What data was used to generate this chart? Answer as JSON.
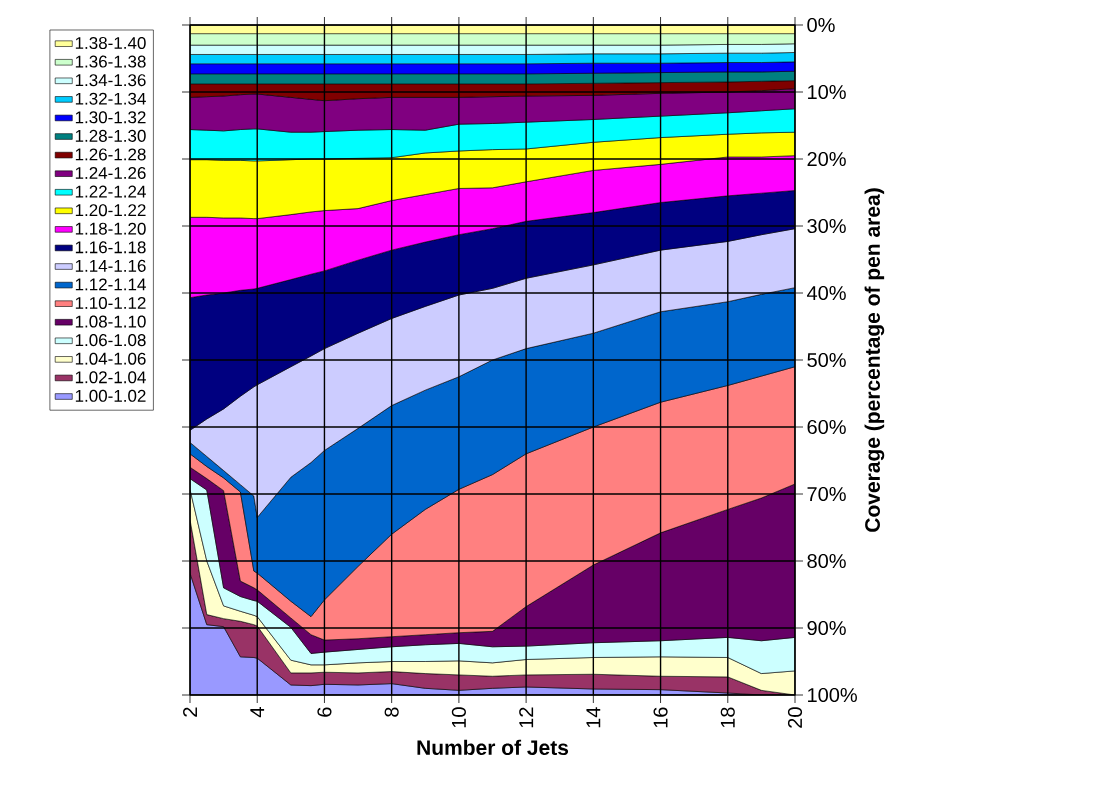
{
  "chart_data": {
    "type": "area",
    "stacked": true,
    "xlabel": "Number of Jets",
    "ylabel": "Coverage (percentage of pen area)",
    "x": [
      2,
      2.5,
      3,
      3.5,
      3.9,
      4,
      5,
      5.6,
      6,
      7,
      8,
      9,
      10,
      11,
      12,
      14,
      16,
      18,
      19,
      20
    ],
    "xlim": [
      2,
      20
    ],
    "xticks": [
      2,
      4,
      6,
      8,
      10,
      12,
      14,
      16,
      18,
      20
    ],
    "ylim": [
      100,
      0
    ],
    "yticks": [
      {
        "value": 0,
        "label": "0%"
      },
      {
        "value": 10,
        "label": "10%"
      },
      {
        "value": 20,
        "label": "20%"
      },
      {
        "value": 30,
        "label": "30%"
      },
      {
        "value": 40,
        "label": "40%"
      },
      {
        "value": 50,
        "label": "50%"
      },
      {
        "value": 60,
        "label": "60%"
      },
      {
        "value": 70,
        "label": "70%"
      },
      {
        "value": 80,
        "label": "80%"
      },
      {
        "value": 90,
        "label": "90%"
      },
      {
        "value": 100,
        "label": "100%"
      }
    ],
    "grid": true,
    "legend": "left",
    "series": [
      {
        "name": "1.38-1.40",
        "color": "#ffff99",
        "values": [
          1.3,
          1.3,
          1.3,
          1.3,
          1.3,
          1.3,
          1.3,
          1.3,
          1.3,
          1.3,
          1.3,
          1.3,
          1.3,
          1.3,
          1.3,
          1.3,
          1.3,
          1.3,
          1.3,
          1.3
        ]
      },
      {
        "name": "1.36-1.38",
        "color": "#ccffcc",
        "values": [
          1.7,
          1.7,
          1.7,
          1.7,
          1.7,
          1.7,
          1.7,
          1.7,
          1.7,
          1.7,
          1.7,
          1.7,
          1.7,
          1.7,
          1.7,
          1.7,
          1.7,
          1.6,
          1.6,
          1.5
        ]
      },
      {
        "name": "1.34-1.36",
        "color": "#ccffff",
        "values": [
          1.4,
          1.4,
          1.4,
          1.4,
          1.4,
          1.4,
          1.4,
          1.4,
          1.4,
          1.4,
          1.4,
          1.4,
          1.4,
          1.4,
          1.4,
          1.3,
          1.3,
          1.3,
          1.3,
          1.3
        ]
      },
      {
        "name": "1.32-1.34",
        "color": "#00ccff",
        "values": [
          1.4,
          1.4,
          1.4,
          1.4,
          1.4,
          1.4,
          1.4,
          1.4,
          1.4,
          1.4,
          1.4,
          1.4,
          1.4,
          1.4,
          1.4,
          1.4,
          1.4,
          1.4,
          1.4,
          1.4
        ]
      },
      {
        "name": "1.30-1.32",
        "color": "#0000ff",
        "values": [
          1.5,
          1.5,
          1.5,
          1.5,
          1.5,
          1.5,
          1.5,
          1.5,
          1.5,
          1.5,
          1.5,
          1.5,
          1.5,
          1.5,
          1.5,
          1.5,
          1.4,
          1.4,
          1.4,
          1.4
        ]
      },
      {
        "name": "1.28-1.30",
        "color": "#008080",
        "values": [
          1.5,
          1.5,
          1.5,
          1.5,
          1.5,
          1.5,
          1.5,
          1.5,
          1.5,
          1.5,
          1.5,
          1.5,
          1.5,
          1.5,
          1.5,
          1.5,
          1.5,
          1.5,
          1.4,
          1.4
        ]
      },
      {
        "name": "1.26-1.28",
        "color": "#800000",
        "values": [
          2.0,
          1.9,
          1.8,
          1.6,
          1.5,
          1.5,
          2.0,
          2.3,
          2.5,
          2.2,
          2.0,
          2.0,
          2.0,
          1.9,
          1.8,
          1.8,
          1.6,
          1.5,
          1.4,
          1.2
        ]
      },
      {
        "name": "1.24-1.26",
        "color": "#800080",
        "values": [
          4.8,
          5.0,
          5.2,
          5.2,
          5.2,
          5.2,
          5.2,
          4.9,
          4.6,
          4.7,
          4.8,
          4.9,
          4.0,
          4.0,
          3.9,
          3.6,
          3.4,
          3.1,
          3.0,
          3.0
        ]
      },
      {
        "name": "1.22-1.24",
        "color": "#00ffff",
        "values": [
          4.5,
          4.4,
          4.4,
          4.6,
          4.8,
          4.8,
          4.1,
          4.0,
          4.1,
          4.2,
          4.2,
          3.4,
          4.0,
          3.9,
          4.0,
          3.4,
          3.2,
          3.2,
          3.3,
          3.5
        ]
      },
      {
        "name": "1.20-1.22",
        "color": "#ffff00",
        "values": [
          8.6,
          8.6,
          8.6,
          8.6,
          8.6,
          8.6,
          8.2,
          7.9,
          7.7,
          7.5,
          6.4,
          6.2,
          5.6,
          5.7,
          4.9,
          4.2,
          4.0,
          3.4,
          3.6,
          3.5
        ]
      },
      {
        "name": "1.18-1.20",
        "color": "#ff00ff",
        "values": [
          12.0,
          11.6,
          11.2,
          10.8,
          10.5,
          10.4,
          9.7,
          9.3,
          9.0,
          7.7,
          7.4,
          7.1,
          6.9,
          6.1,
          5.9,
          6.3,
          5.7,
          5.8,
          5.4,
          5.2
        ]
      },
      {
        "name": "1.16-1.18",
        "color": "#000080",
        "values": [
          19.8,
          18.5,
          17.3,
          15.8,
          14.6,
          14.4,
          13.0,
          12.2,
          11.6,
          10.9,
          10.2,
          9.6,
          9.0,
          8.9,
          8.5,
          7.8,
          7.1,
          6.8,
          6.2,
          5.7
        ]
      },
      {
        "name": "1.14-1.16",
        "color": "#ccccff",
        "values": [
          1.8,
          5.6,
          9.2,
          13.2,
          16.3,
          19.8,
          16.5,
          15.9,
          15.2,
          14.2,
          13.0,
          12.5,
          12.2,
          10.7,
          10.5,
          10.2,
          9.2,
          9.0,
          8.9,
          8.8
        ]
      },
      {
        "name": "1.12-1.14",
        "color": "#0066cc",
        "values": [
          1.7,
          1.5,
          1.1,
          1.1,
          11.2,
          8.3,
          18.5,
          23.0,
          22.3,
          20.6,
          19.2,
          17.8,
          16.8,
          17.1,
          15.7,
          14.0,
          13.5,
          12.5,
          12.2,
          11.8
        ]
      },
      {
        "name": "1.10-1.12",
        "color": "#ff8080",
        "values": [
          2.0,
          1.8,
          1.9,
          13.3,
          2.5,
          2.5,
          2.5,
          2.7,
          6.0,
          10.8,
          15.3,
          18.7,
          21.4,
          23.4,
          22.8,
          20.6,
          19.5,
          18.5,
          18.2,
          17.5
        ]
      },
      {
        "name": "1.08-1.10",
        "color": "#660066",
        "values": [
          1.7,
          1.7,
          14.5,
          2.3,
          1.9,
          1.7,
          1.4,
          2.8,
          1.8,
          1.6,
          1.5,
          1.5,
          1.6,
          2.3,
          5.9,
          11.6,
          16.1,
          19.1,
          21.3,
          22.9
        ]
      },
      {
        "name": "1.06-1.08",
        "color": "#ccffff",
        "values": [
          1.6,
          10.6,
          2.7,
          2.2,
          2.2,
          2.3,
          4.9,
          1.7,
          1.9,
          2.0,
          2.2,
          2.5,
          2.6,
          2.4,
          2.0,
          2.2,
          2.4,
          3.0,
          4.9,
          5.0
        ]
      },
      {
        "name": "1.04-1.06",
        "color": "#ffffcc",
        "values": [
          4.5,
          8.0,
          1.9,
          1.5,
          1.4,
          1.4,
          1.9,
          1.2,
          1.1,
          1.5,
          1.5,
          1.8,
          2.1,
          2.0,
          2.3,
          2.5,
          2.9,
          2.9,
          2.5,
          3.6
        ]
      },
      {
        "name": "1.02-1.04",
        "color": "#993366",
        "values": [
          8.0,
          1.5,
          1.2,
          5.3,
          4.9,
          4.8,
          1.8,
          1.9,
          1.8,
          1.8,
          1.8,
          2.2,
          2.3,
          1.8,
          1.8,
          2.2,
          2.0,
          2.4,
          0.7,
          0.0
        ]
      },
      {
        "name": "1.00-1.02",
        "color": "#9999ff",
        "values": [
          18.2,
          10.5,
          10.2,
          5.7,
          5.6,
          5.5,
          1.5,
          1.4,
          1.6,
          1.5,
          1.7,
          1.0,
          0.7,
          1.0,
          1.2,
          0.9,
          0.8,
          0.3,
          0.0,
          0.0
        ]
      }
    ]
  }
}
